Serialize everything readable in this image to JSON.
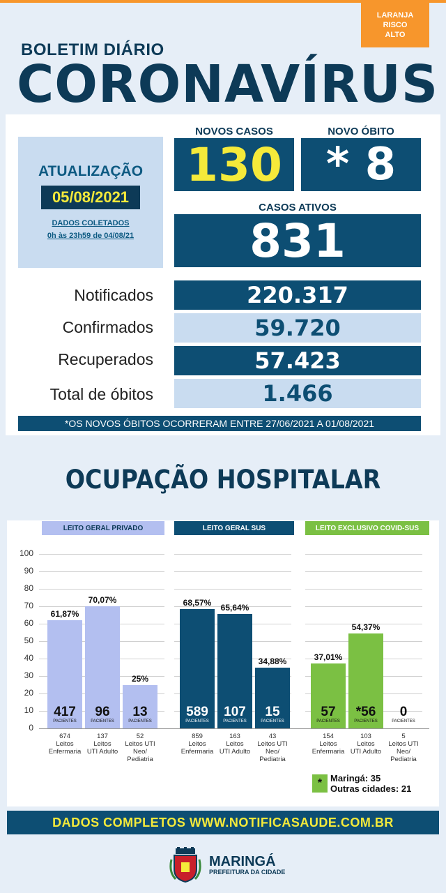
{
  "badge": {
    "line1": "LARANJA",
    "line2": "RISCO",
    "line3": "ALTO",
    "color": "#f7962c"
  },
  "header": {
    "bulletin": "BOLETIM DIÁRIO",
    "title": "CORONAVÍRUS"
  },
  "update": {
    "title": "ATUALIZAÇÃO",
    "date": "05/08/2021",
    "note1": "DADOS COLETADOS",
    "note2": "0h às 23h59 de 04/08/21"
  },
  "highlights": {
    "new_cases_label": "NOVOS CASOS",
    "new_cases_value": "130",
    "new_death_label": "NOVO ÓBITO",
    "new_death_value": "* 8",
    "active_label": "CASOS ATIVOS",
    "active_value": "831"
  },
  "totals": [
    {
      "label": "Notificados",
      "value": "220.317"
    },
    {
      "label": "Confirmados",
      "value": "59.720"
    },
    {
      "label": "Recuperados",
      "value": "57.423"
    },
    {
      "label": "Total de óbitos",
      "value": "1.466"
    }
  ],
  "footnote": "*OS NOVOS ÓBITOS OCORRERAM ENTRE 27/06/2021 A 01/08/2021",
  "hospital": {
    "title": "OCUPAÇÃO HOSPITALAR",
    "legend_star": "*",
    "legend_line1": "Maringá: 35",
    "legend_line2": "Outras cidades: 21"
  },
  "chart_data": {
    "type": "bar",
    "ylim": [
      0,
      100
    ],
    "yticks": [
      "100",
      "90",
      "80",
      "70",
      "60",
      "50",
      "40",
      "30",
      "20",
      "10",
      "0"
    ],
    "groups": [
      {
        "name": "LEITO GERAL PRIVADO",
        "color": "#b3bff0",
        "header_color": "#b3bff0",
        "header_text_color": "#0d3a57",
        "bars": [
          {
            "pct_label": "61,87%",
            "value": 61.87,
            "patients": "417",
            "beds_line1": "674",
            "beds_line2": "Leitos",
            "beds_line3": "Enfermaria",
            "beds_line4": ""
          },
          {
            "pct_label": "70,07%",
            "value": 70.07,
            "patients": "96",
            "beds_line1": "137",
            "beds_line2": "Leitos",
            "beds_line3": "UTI Adulto",
            "beds_line4": ""
          },
          {
            "pct_label": "25%",
            "value": 25,
            "patients": "13",
            "beds_line1": "52",
            "beds_line2": "Leitos UTI",
            "beds_line3": "Neo/",
            "beds_line4": "Pediatria"
          }
        ]
      },
      {
        "name": "LEITO GERAL SUS",
        "color": "#0d4e73",
        "header_color": "#0d4e73",
        "header_text_color": "#ffffff",
        "bars": [
          {
            "pct_label": "68,57%",
            "value": 68.57,
            "patients": "589",
            "beds_line1": "859",
            "beds_line2": "Leitos",
            "beds_line3": "Enfermaria",
            "beds_line4": ""
          },
          {
            "pct_label": "65,64%",
            "value": 65.64,
            "patients": "107",
            "beds_line1": "163",
            "beds_line2": "Leitos",
            "beds_line3": "UTI Adulto",
            "beds_line4": ""
          },
          {
            "pct_label": "34,88%",
            "value": 34.88,
            "patients": "15",
            "beds_line1": "43",
            "beds_line2": "Leitos UTI",
            "beds_line3": "Neo/",
            "beds_line4": "Pediatria"
          }
        ]
      },
      {
        "name": "LEITO EXCLUSIVO COVID-SUS",
        "color": "#7bc043",
        "header_color": "#7bc043",
        "header_text_color": "#ffffff",
        "bars": [
          {
            "pct_label": "37,01%",
            "value": 37.01,
            "patients": "57",
            "beds_line1": "154",
            "beds_line2": "Leitos",
            "beds_line3": "Enfermaria",
            "beds_line4": ""
          },
          {
            "pct_label": "54,37%",
            "value": 54.37,
            "patients": "*56",
            "beds_line1": "103",
            "beds_line2": "Leitos",
            "beds_line3": "UTI Adulto",
            "beds_line4": ""
          },
          {
            "pct_label": "",
            "value": 0,
            "patients": "0",
            "beds_line1": "5",
            "beds_line2": "Leitos UTI",
            "beds_line3": "Neo/",
            "beds_line4": "Pediatria"
          }
        ]
      }
    ],
    "patients_label": "PACIENTES"
  },
  "footer": {
    "link_text": "DADOS COMPLETOS  WWW.NOTIFICASAUDE.COM.BR",
    "city": "MARINGÁ",
    "city_sub": "PREFEITURA DA CIDADE"
  }
}
